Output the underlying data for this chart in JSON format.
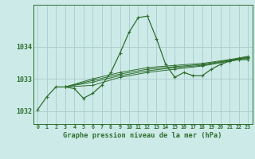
{
  "title": "Graphe pression niveau de la mer (hPa)",
  "background_color": "#cceae7",
  "grid_color": "#aacccc",
  "line_color": "#2d6e2d",
  "xlim": [
    -0.5,
    23.5
  ],
  "ylim": [
    1031.6,
    1035.3
  ],
  "yticks": [
    1032,
    1033,
    1034
  ],
  "xticks": [
    0,
    1,
    2,
    3,
    4,
    5,
    6,
    7,
    8,
    9,
    10,
    11,
    12,
    13,
    14,
    15,
    16,
    17,
    18,
    19,
    20,
    21,
    22,
    23
  ],
  "main_series": {
    "x": [
      0,
      1,
      2,
      3,
      4,
      5,
      6,
      7,
      8,
      9,
      10,
      11,
      12,
      13,
      14,
      15,
      16,
      17,
      18,
      19,
      20,
      21,
      22,
      23
    ],
    "y": [
      1032.05,
      1032.45,
      1032.75,
      1032.75,
      1032.7,
      1032.4,
      1032.55,
      1032.8,
      1033.2,
      1033.8,
      1034.45,
      1034.9,
      1034.95,
      1034.25,
      1033.45,
      1033.05,
      1033.2,
      1033.1,
      1033.1,
      1033.3,
      1033.45,
      1033.55,
      1033.6,
      1033.6
    ]
  },
  "forecast_series": [
    {
      "x": [
        3,
        6,
        9,
        12,
        15,
        18,
        21,
        22,
        23
      ],
      "y": [
        1032.75,
        1032.8,
        1033.05,
        1033.2,
        1033.3,
        1033.4,
        1033.55,
        1033.6,
        1033.65
      ]
    },
    {
      "x": [
        3,
        6,
        9,
        12,
        15,
        18,
        21,
        22,
        23
      ],
      "y": [
        1032.75,
        1032.9,
        1033.1,
        1033.25,
        1033.35,
        1033.42,
        1033.57,
        1033.62,
        1033.67
      ]
    },
    {
      "x": [
        3,
        6,
        9,
        12,
        15,
        18,
        21,
        22,
        23
      ],
      "y": [
        1032.75,
        1032.95,
        1033.15,
        1033.3,
        1033.38,
        1033.45,
        1033.58,
        1033.63,
        1033.68
      ]
    },
    {
      "x": [
        3,
        6,
        9,
        12,
        15,
        18,
        21,
        22,
        23
      ],
      "y": [
        1032.75,
        1033.0,
        1033.2,
        1033.35,
        1033.42,
        1033.48,
        1033.6,
        1033.65,
        1033.7
      ]
    }
  ]
}
